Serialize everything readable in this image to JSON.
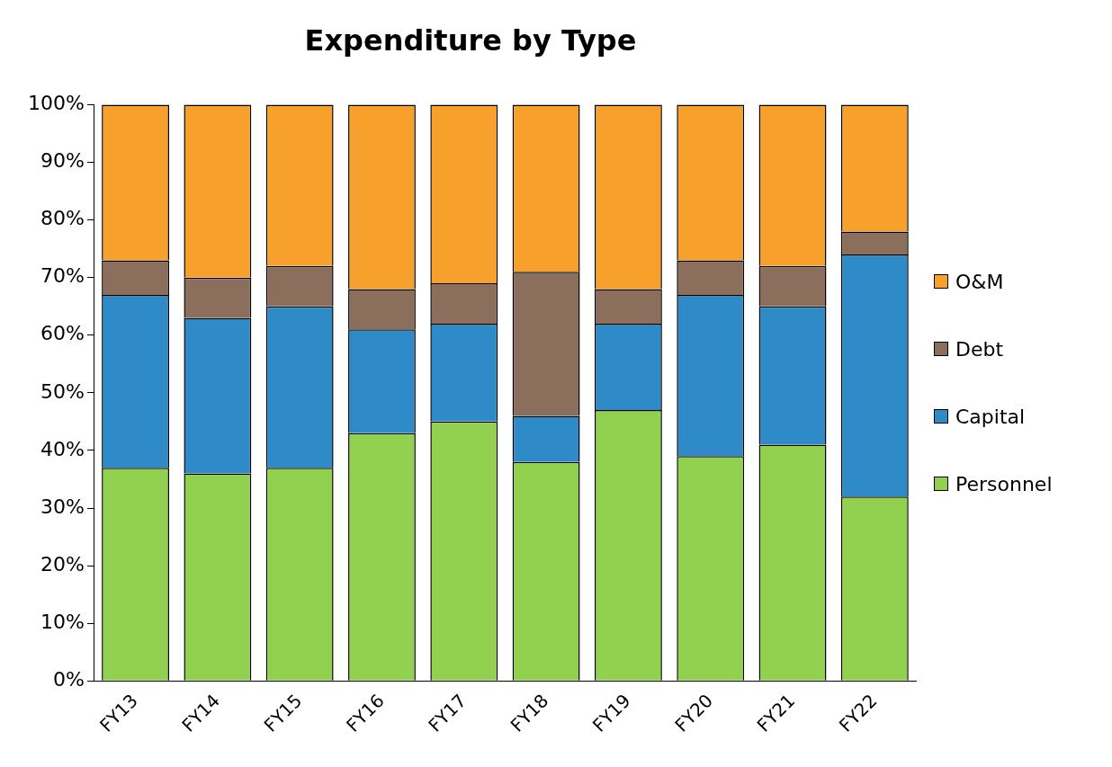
{
  "chart_data": {
    "type": "bar",
    "title": "Expenditure by Type",
    "stacked": true,
    "categories": [
      "FY13",
      "FY14",
      "FY15",
      "FY16",
      "FY17",
      "FY18",
      "FY19",
      "FY20",
      "FY21",
      "FY22"
    ],
    "series": [
      {
        "name": "Personnel",
        "color": "#92d050",
        "values": [
          37,
          36,
          37,
          43,
          45,
          38,
          47,
          39,
          41,
          32
        ]
      },
      {
        "name": "Capital",
        "color": "#2e8bc8",
        "values": [
          30,
          27,
          28,
          18,
          17,
          8,
          15,
          28,
          24,
          42
        ]
      },
      {
        "name": "Debt",
        "color": "#8c6e5d",
        "values": [
          6,
          7,
          7,
          7,
          7,
          25,
          6,
          6,
          7,
          4
        ]
      },
      {
        "name": "O&M",
        "color": "#f7a02b",
        "values": [
          27,
          30,
          28,
          32,
          31,
          29,
          32,
          27,
          28,
          22
        ]
      }
    ],
    "ylim": [
      0,
      100
    ],
    "yticks": [
      {
        "value": 0,
        "label": "0%"
      },
      {
        "value": 10,
        "label": "10%"
      },
      {
        "value": 20,
        "label": "20%"
      },
      {
        "value": 30,
        "label": "30%"
      },
      {
        "value": 40,
        "label": "40%"
      },
      {
        "value": 50,
        "label": "50%"
      },
      {
        "value": 60,
        "label": "60%"
      },
      {
        "value": 70,
        "label": "70%"
      },
      {
        "value": 80,
        "label": "80%"
      },
      {
        "value": 90,
        "label": "90%"
      },
      {
        "value": 100,
        "label": "100%"
      }
    ],
    "grid": false,
    "legend": "right"
  }
}
